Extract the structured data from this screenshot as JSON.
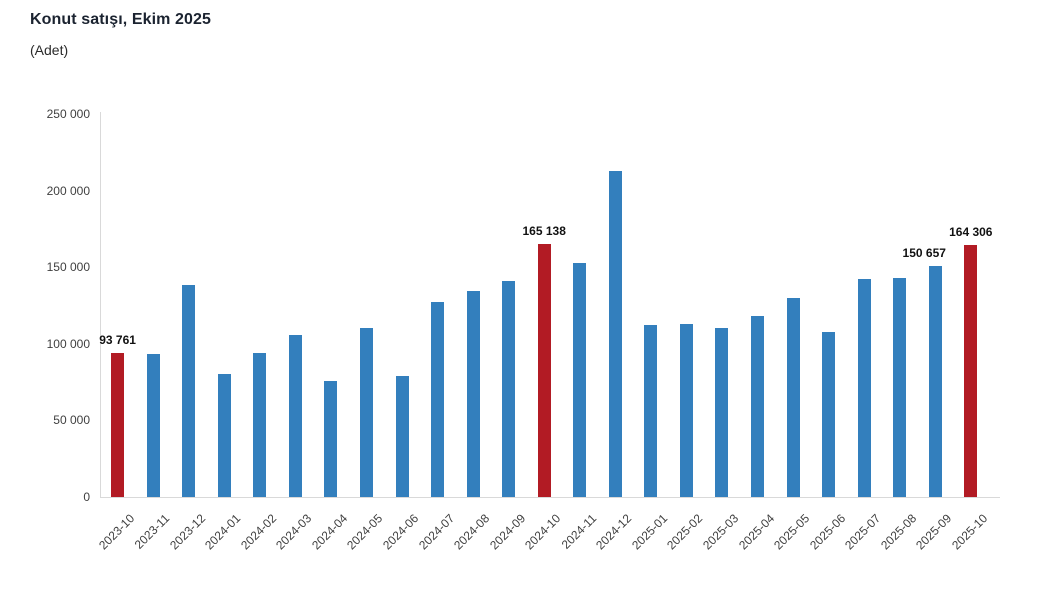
{
  "header": {
    "title": "Konut satışı, Ekim 2025",
    "subtitle": "(Adet)"
  },
  "chart_data": {
    "type": "bar",
    "title": "Konut satışı, Ekim 2025",
    "unit_label": "(Adet)",
    "ylim": [
      0,
      250000
    ],
    "grid": false,
    "legend": false,
    "y_ticks": [
      "0",
      "50 000",
      "100 000",
      "150 000",
      "200 000",
      "250 000"
    ],
    "colors": {
      "bar": "#337FBD",
      "highlight": "#B21B24",
      "axis_line": "#D9D9D9",
      "tick_text": "#3F3F3F",
      "value_label_text": "#111111",
      "title_text": "#1B2330"
    },
    "bars": [
      {
        "label": "2023-10",
        "value": 93761,
        "highlight": true,
        "data_label": "93 761"
      },
      {
        "label": "2023-11",
        "value": 93514,
        "highlight": false,
        "data_label": null
      },
      {
        "label": "2023-12",
        "value": 138577,
        "highlight": false,
        "data_label": null
      },
      {
        "label": "2024-01",
        "value": 80308,
        "highlight": false,
        "data_label": null
      },
      {
        "label": "2024-02",
        "value": 93902,
        "highlight": false,
        "data_label": null
      },
      {
        "label": "2024-03",
        "value": 105476,
        "highlight": false,
        "data_label": null
      },
      {
        "label": "2024-04",
        "value": 75569,
        "highlight": false,
        "data_label": null
      },
      {
        "label": "2024-05",
        "value": 110588,
        "highlight": false,
        "data_label": null
      },
      {
        "label": "2024-06",
        "value": 79000,
        "highlight": false,
        "data_label": null
      },
      {
        "label": "2024-07",
        "value": 127088,
        "highlight": false,
        "data_label": null
      },
      {
        "label": "2024-08",
        "value": 134155,
        "highlight": false,
        "data_label": null
      },
      {
        "label": "2024-09",
        "value": 140919,
        "highlight": false,
        "data_label": null
      },
      {
        "label": "2024-10",
        "value": 165138,
        "highlight": true,
        "data_label": "165 138"
      },
      {
        "label": "2024-11",
        "value": 153014,
        "highlight": false,
        "data_label": null
      },
      {
        "label": "2024-12",
        "value": 212637,
        "highlight": false,
        "data_label": null
      },
      {
        "label": "2025-01",
        "value": 112000,
        "highlight": false,
        "data_label": null
      },
      {
        "label": "2025-02",
        "value": 112800,
        "highlight": false,
        "data_label": null
      },
      {
        "label": "2025-03",
        "value": 110400,
        "highlight": false,
        "data_label": null
      },
      {
        "label": "2025-04",
        "value": 117900,
        "highlight": false,
        "data_label": null
      },
      {
        "label": "2025-05",
        "value": 129700,
        "highlight": false,
        "data_label": null
      },
      {
        "label": "2025-06",
        "value": 107500,
        "highlight": false,
        "data_label": null
      },
      {
        "label": "2025-07",
        "value": 142600,
        "highlight": false,
        "data_label": null
      },
      {
        "label": "2025-08",
        "value": 143100,
        "highlight": false,
        "data_label": null
      },
      {
        "label": "2025-09",
        "value": 150657,
        "highlight": false,
        "data_label": "150 657"
      },
      {
        "label": "2025-10",
        "value": 164306,
        "highlight": true,
        "data_label": "164 306"
      }
    ]
  }
}
